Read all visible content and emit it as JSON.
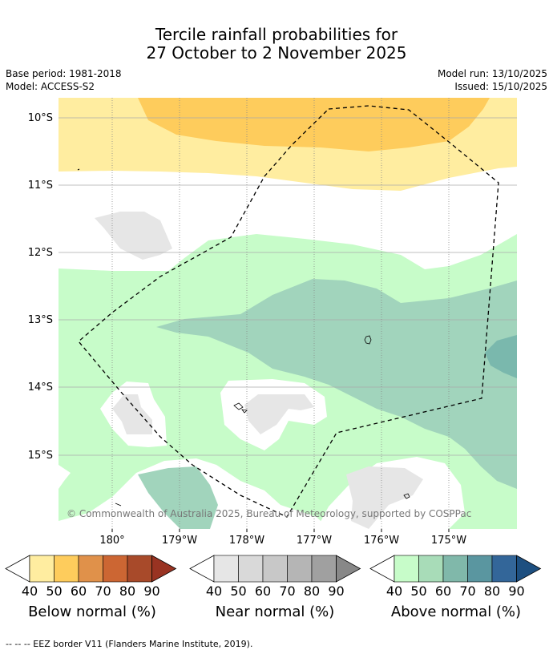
{
  "title": {
    "line1": "Tercile rainfall probabilities for",
    "line2": "27 October to 2 November 2025"
  },
  "meta": {
    "base_period": "Base period: 1981-2018",
    "model": "Model: ACCESS-S2",
    "model_run": "Model run: 13/10/2025",
    "issued": "Issued: 15/10/2025"
  },
  "map": {
    "lat_labels": [
      "10°S",
      "11°S",
      "12°S",
      "13°S",
      "14°S",
      "15°S"
    ],
    "lon_labels": [
      "180°",
      "179°W",
      "178°W",
      "177°W",
      "176°W",
      "175°W"
    ],
    "copyright": "© Commonwealth of Australia 2025, Bureau of Meteorology, supported by COSPPac",
    "colors": {
      "below_40": "#ffeda0",
      "below_50": "#fecc5c",
      "near_40": "#e6e6e6",
      "above_40": "#c7fcc9",
      "above_50": "#a1d4bc",
      "above_60": "#7ab8ad"
    }
  },
  "colorbars": [
    {
      "label": "Below normal (%)",
      "ticks": [
        "40",
        "50",
        "60",
        "70",
        "80",
        "90"
      ],
      "colors": [
        "#ffeda0",
        "#fecc5c",
        "#e0914a",
        "#cc6633",
        "#a84a2a",
        "#993322"
      ]
    },
    {
      "label": "Near normal (%)",
      "ticks": [
        "40",
        "50",
        "60",
        "70",
        "80",
        "90"
      ],
      "colors": [
        "#e6e6e6",
        "#d9d9d9",
        "#c8c8c8",
        "#b5b5b5",
        "#a0a0a0",
        "#888888"
      ]
    },
    {
      "label": "Above normal (%)",
      "ticks": [
        "40",
        "50",
        "60",
        "70",
        "80",
        "90"
      ],
      "colors": [
        "#c7fcc9",
        "#a8dcb8",
        "#80b8aa",
        "#5a96a0",
        "#336699",
        "#1d4f80"
      ]
    }
  ],
  "footnote": "--  --  -- EEZ border V11 (Flanders Marine Institute, 2019)."
}
